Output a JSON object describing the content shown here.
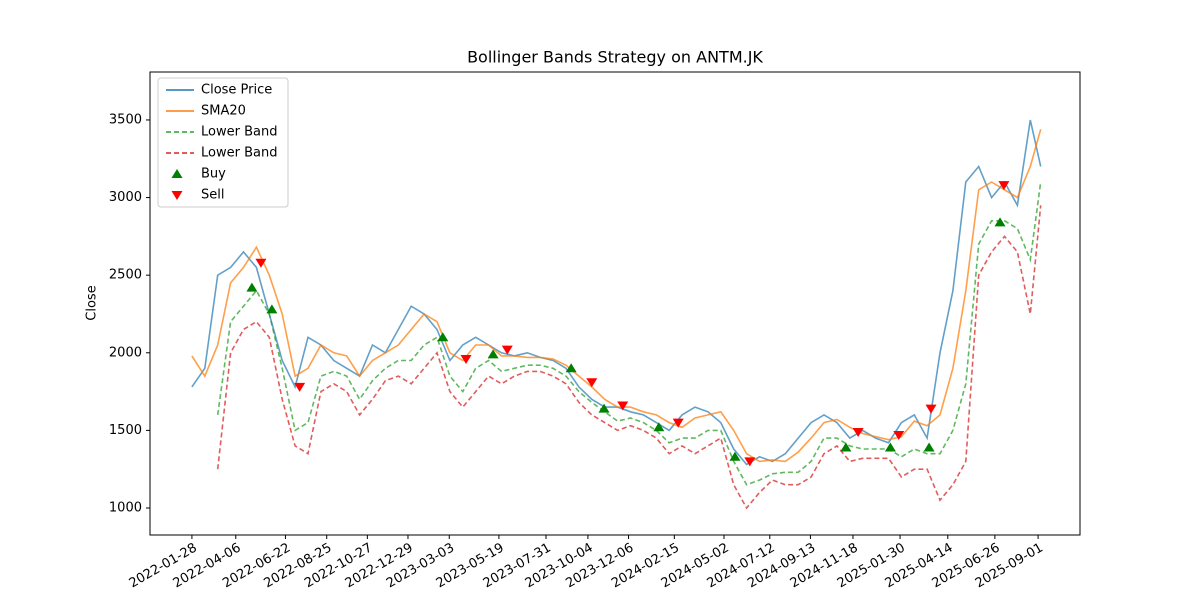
{
  "chart_data": {
    "type": "line",
    "title": "Bollinger Bands Strategy on ANTM.JK",
    "ylabel": "Close",
    "x": [
      "2022-01-28",
      "2022-02-17",
      "2022-03-09",
      "2022-03-29",
      "2022-04-18",
      "2022-05-08",
      "2022-05-28",
      "2022-06-17",
      "2022-07-07",
      "2022-07-27",
      "2022-08-16",
      "2022-09-05",
      "2022-09-25",
      "2022-10-15",
      "2022-11-04",
      "2022-11-24",
      "2022-12-14",
      "2023-01-03",
      "2023-01-23",
      "2023-02-12",
      "2023-03-04",
      "2023-03-24",
      "2023-04-13",
      "2023-05-03",
      "2023-05-23",
      "2023-06-12",
      "2023-07-02",
      "2023-07-22",
      "2023-08-11",
      "2023-08-31",
      "2023-09-20",
      "2023-10-10",
      "2023-10-30",
      "2023-11-19",
      "2023-12-09",
      "2023-12-29",
      "2024-01-18",
      "2024-02-07",
      "2024-02-27",
      "2024-03-18",
      "2024-04-07",
      "2024-04-27",
      "2024-05-17",
      "2024-06-06",
      "2024-06-26",
      "2024-07-16",
      "2024-08-05",
      "2024-08-25",
      "2024-09-14",
      "2024-10-04",
      "2024-10-24",
      "2024-11-13",
      "2024-12-03",
      "2024-12-23",
      "2025-01-12",
      "2025-02-01",
      "2025-02-21",
      "2025-03-13",
      "2025-04-02",
      "2025-04-22",
      "2025-05-12",
      "2025-06-01",
      "2025-06-21",
      "2025-07-11",
      "2025-07-31",
      "2025-08-20",
      "2025-09-05"
    ],
    "series": [
      {
        "name": "Close Price",
        "color": "#1f77b4",
        "dash": false,
        "values": [
          1780,
          1900,
          2500,
          2550,
          2650,
          2550,
          2250,
          1950,
          1780,
          2100,
          2050,
          1950,
          1900,
          1850,
          2050,
          2000,
          2150,
          2300,
          2250,
          2150,
          1950,
          2050,
          2100,
          2050,
          2000,
          1980,
          2000,
          1970,
          1950,
          1900,
          1780,
          1700,
          1650,
          1650,
          1620,
          1600,
          1550,
          1500,
          1600,
          1650,
          1620,
          1550,
          1380,
          1280,
          1330,
          1300,
          1350,
          1450,
          1550,
          1600,
          1550,
          1450,
          1500,
          1450,
          1420,
          1550,
          1600,
          1450,
          2000,
          2400,
          3100,
          3200,
          3000,
          3100,
          2950,
          3500,
          3200
        ]
      },
      {
        "name": "SMA20",
        "color": "#ff7f0e",
        "dash": false,
        "values": [
          1980,
          1850,
          2050,
          2450,
          2550,
          2680,
          2500,
          2250,
          1850,
          1900,
          2050,
          2000,
          1980,
          1850,
          1950,
          2000,
          2050,
          2150,
          2250,
          2200,
          2000,
          1950,
          2050,
          2050,
          1980,
          1980,
          1970,
          1970,
          1960,
          1920,
          1850,
          1780,
          1700,
          1650,
          1650,
          1620,
          1600,
          1550,
          1520,
          1580,
          1600,
          1620,
          1500,
          1350,
          1300,
          1310,
          1300,
          1360,
          1450,
          1550,
          1570,
          1520,
          1480,
          1460,
          1440,
          1460,
          1560,
          1530,
          1600,
          1900,
          2400,
          3050,
          3100,
          3050,
          3000,
          3200,
          3440
        ]
      },
      {
        "name": "Lower Band",
        "color": "#2ca02c",
        "dash": true,
        "values": [
          null,
          null,
          1600,
          2200,
          2300,
          2400,
          2250,
          1900,
          1500,
          1550,
          1850,
          1880,
          1850,
          1700,
          1820,
          1900,
          1950,
          1950,
          2050,
          2100,
          1850,
          1750,
          1900,
          1950,
          1880,
          1900,
          1920,
          1920,
          1900,
          1850,
          1750,
          1680,
          1620,
          1560,
          1580,
          1550,
          1500,
          1420,
          1450,
          1450,
          1500,
          1500,
          1300,
          1150,
          1180,
          1220,
          1230,
          1230,
          1300,
          1450,
          1450,
          1400,
          1380,
          1380,
          1380,
          1330,
          1380,
          1350,
          1350,
          1500,
          1800,
          2700,
          2850,
          2850,
          2800,
          2600,
          3100
        ]
      },
      {
        "name": "Lower Band",
        "color": "#d62728",
        "dash": true,
        "values": [
          null,
          null,
          1250,
          2000,
          2150,
          2200,
          2100,
          1700,
          1400,
          1350,
          1750,
          1800,
          1750,
          1600,
          1700,
          1820,
          1850,
          1800,
          1900,
          2000,
          1750,
          1650,
          1750,
          1850,
          1800,
          1850,
          1880,
          1880,
          1850,
          1800,
          1680,
          1600,
          1550,
          1500,
          1530,
          1500,
          1450,
          1350,
          1400,
          1350,
          1400,
          1450,
          1150,
          1000,
          1100,
          1180,
          1150,
          1150,
          1200,
          1350,
          1400,
          1300,
          1320,
          1320,
          1320,
          1200,
          1250,
          1250,
          1050,
          1150,
          1300,
          2500,
          2650,
          2750,
          2650,
          2250,
          2950
        ]
      }
    ],
    "markers": [
      {
        "name": "Buy",
        "color": "#008000",
        "marker": "up",
        "x": [
          "2022-05-01",
          "2022-06-01",
          "2023-02-21",
          "2023-05-10",
          "2023-09-08",
          "2023-10-29",
          "2024-01-22",
          "2024-05-19",
          "2024-11-07",
          "2025-01-15",
          "2025-03-16",
          "2025-07-04"
        ],
        "values": [
          2420,
          2280,
          2100,
          1990,
          1900,
          1640,
          1520,
          1330,
          1390,
          1390,
          1390,
          2840
        ]
      },
      {
        "name": "Sell",
        "color": "#ff0000",
        "marker": "down",
        "x": [
          "2022-05-15",
          "2022-07-14",
          "2023-03-29",
          "2023-06-01",
          "2023-10-10",
          "2023-11-27",
          "2024-02-21",
          "2024-06-11",
          "2024-11-26",
          "2025-01-28",
          "2025-03-19",
          "2025-07-10"
        ],
        "values": [
          2580,
          1780,
          1960,
          2020,
          1810,
          1660,
          1550,
          1300,
          1490,
          1470,
          1640,
          3080
        ]
      }
    ],
    "xlim": [
      "2021-11-24",
      "2025-11-05"
    ],
    "xticks": [
      "2022-01-28",
      "2022-04-06",
      "2022-06-22",
      "2022-08-25",
      "2022-10-27",
      "2022-12-29",
      "2023-03-03",
      "2023-05-19",
      "2023-07-31",
      "2023-10-04",
      "2023-12-06",
      "2024-02-15",
      "2024-05-02",
      "2024-07-12",
      "2024-09-13",
      "2024-11-18",
      "2025-01-30",
      "2025-04-14",
      "2025-06-26",
      "2025-09-01"
    ],
    "ylim": [
      826,
      3809
    ],
    "yticks": [
      1000,
      1500,
      2000,
      2500,
      3000,
      3500
    ],
    "grid": false,
    "legend": "upper left"
  }
}
